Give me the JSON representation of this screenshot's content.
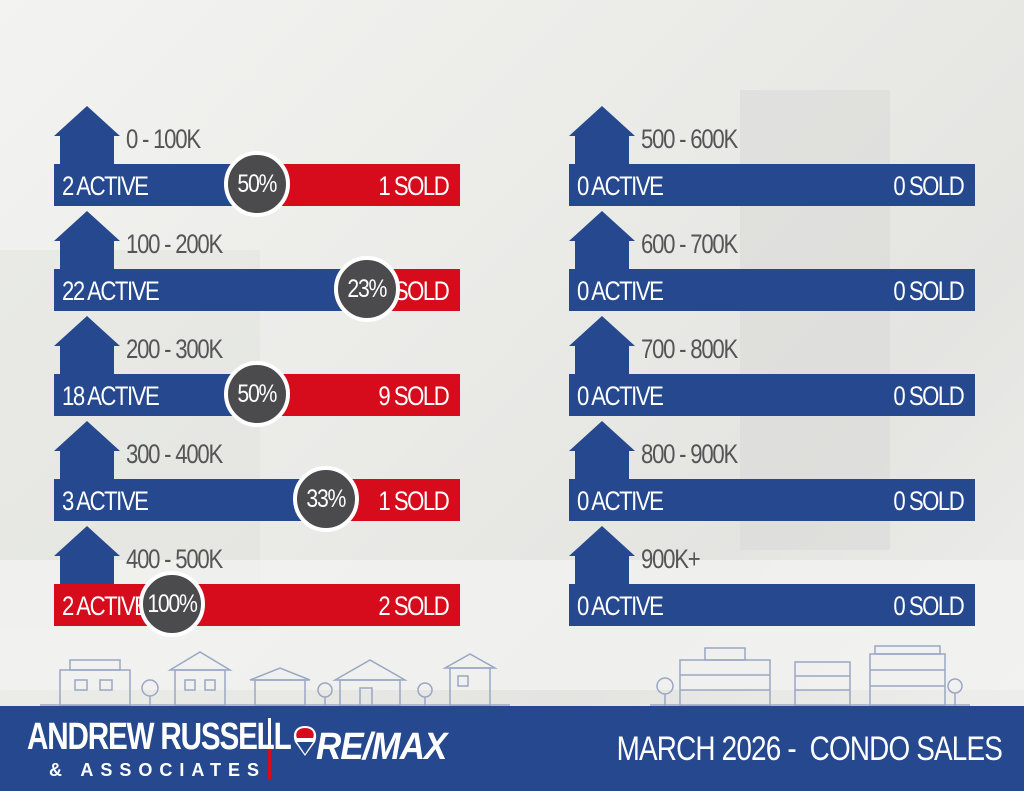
{
  "colors": {
    "blue": "#25488f",
    "red": "#d60c1c",
    "circle": "#4b4b4d"
  },
  "left_rows": [
    {
      "range": "0 - 100K",
      "active": "2 ACTIVE",
      "sold": "1 SOLD",
      "pct": "50%",
      "sold_ratio": 0.5
    },
    {
      "range": "100 - 200K",
      "active": "22 ACTIVE",
      "sold": "5 SOLD",
      "pct": "23%",
      "sold_ratio": 0.23
    },
    {
      "range": "200 - 300K",
      "active": "18 ACTIVE",
      "sold": "9 SOLD",
      "pct": "50%",
      "sold_ratio": 0.5
    },
    {
      "range": "300 - 400K",
      "active": "3 ACTIVE",
      "sold": "1 SOLD",
      "pct": "33%",
      "sold_ratio": 0.33
    },
    {
      "range": "400 - 500K",
      "active": "2 ACTIVE",
      "sold": "2 SOLD",
      "pct": "100%",
      "sold_ratio": 1.0
    }
  ],
  "right_rows": [
    {
      "range": "500 - 600K",
      "active": "0 ACTIVE",
      "sold": "0 SOLD"
    },
    {
      "range": "600 - 700K",
      "active": "0 ACTIVE",
      "sold": "0 SOLD"
    },
    {
      "range": "700 - 800K",
      "active": "0 ACTIVE",
      "sold": "0 SOLD"
    },
    {
      "range": "800 - 900K",
      "active": "0 ACTIVE",
      "sold": "0 SOLD"
    },
    {
      "range": "900K+",
      "active": "0 ACTIVE",
      "sold": "0 SOLD"
    }
  ],
  "footer": {
    "brand_line1": "ANDREW RUSSELL",
    "brand_line2": "& ASSOCIATES",
    "remax": "RE/MAX",
    "title": "MARCH 2026 -  CONDO SALES"
  }
}
